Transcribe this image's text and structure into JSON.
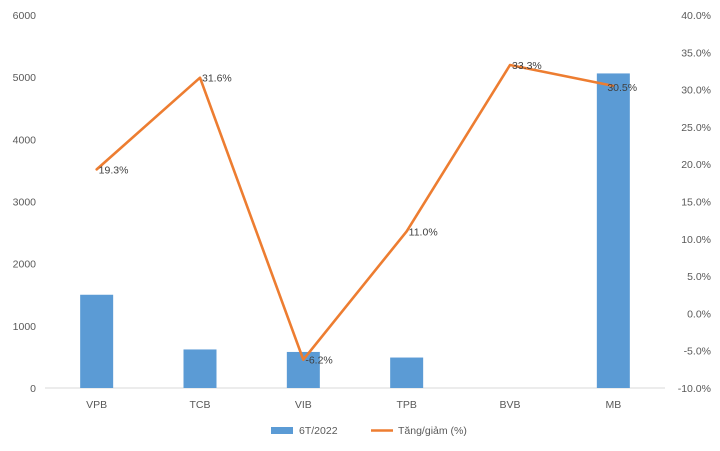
{
  "chart_data": {
    "type": "bar+line",
    "categories": [
      "VPB",
      "TCB",
      "VIB",
      "TPB",
      "BVB",
      "MB"
    ],
    "series": [
      {
        "name": "6T/2022",
        "type": "bar",
        "axis": "left",
        "color": "#5B9BD5",
        "values": [
          1500,
          620,
          580,
          490,
          0,
          5060
        ]
      },
      {
        "name": "Tăng/giảm (%)",
        "type": "line",
        "axis": "right",
        "color": "#ED7D31",
        "values": [
          19.3,
          31.6,
          -6.2,
          11.0,
          33.3,
          30.5
        ],
        "labels": [
          "19.3%",
          "31.6%",
          "-6.2%",
          "11.0%",
          "33.3%",
          "30.5%"
        ]
      }
    ],
    "y_left": {
      "ylim": [
        0,
        6000
      ],
      "ticks": [
        "0",
        "1000",
        "2000",
        "3000",
        "4000",
        "5000",
        "6000"
      ]
    },
    "y_right": {
      "ylim": [
        -10,
        40
      ],
      "ticks": [
        "-10.0%",
        "-5.0%",
        "0.0%",
        "5.0%",
        "10.0%",
        "15.0%",
        "20.0%",
        "25.0%",
        "30.0%",
        "35.0%",
        "40.0%"
      ]
    },
    "grid": false,
    "legend_position": "bottom"
  }
}
